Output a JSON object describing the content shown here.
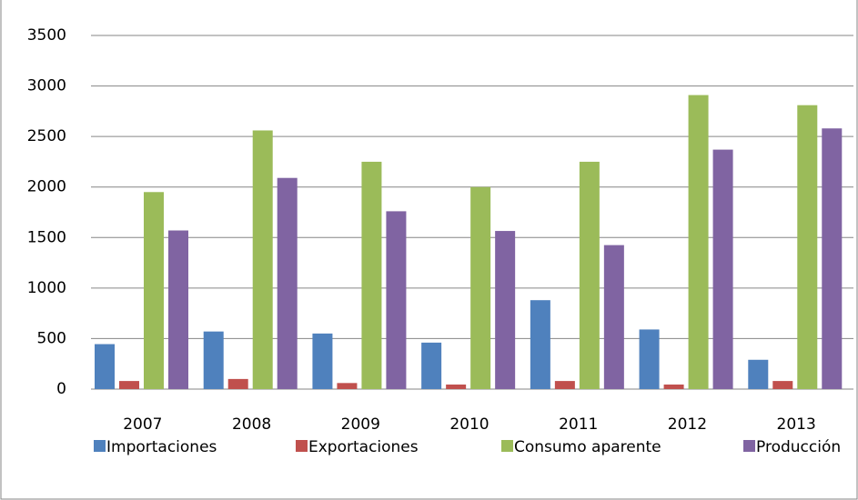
{
  "chart_data": {
    "type": "bar",
    "categories": [
      "2007",
      "2008",
      "2009",
      "2010",
      "2011",
      "2012",
      "2013"
    ],
    "series": [
      {
        "name": "Importaciones",
        "color": "#4f81bd",
        "values": [
          445,
          570,
          550,
          460,
          880,
          590,
          290
        ]
      },
      {
        "name": "Exportaciones",
        "color": "#c0504d",
        "values": [
          80,
          100,
          60,
          45,
          80,
          45,
          80
        ]
      },
      {
        "name": "Consumo aparente",
        "color": "#9bbb59",
        "values": [
          1950,
          2560,
          2250,
          2000,
          2250,
          2910,
          2810
        ]
      },
      {
        "name": "Producción",
        "color": "#8064a2",
        "values": [
          1570,
          2090,
          1760,
          1565,
          1425,
          2370,
          2580
        ]
      }
    ],
    "ylim": [
      0,
      3500
    ],
    "yticks": [
      0,
      500,
      1000,
      1500,
      2000,
      2500,
      3000,
      3500
    ],
    "grid": true,
    "legend": "bottom"
  }
}
